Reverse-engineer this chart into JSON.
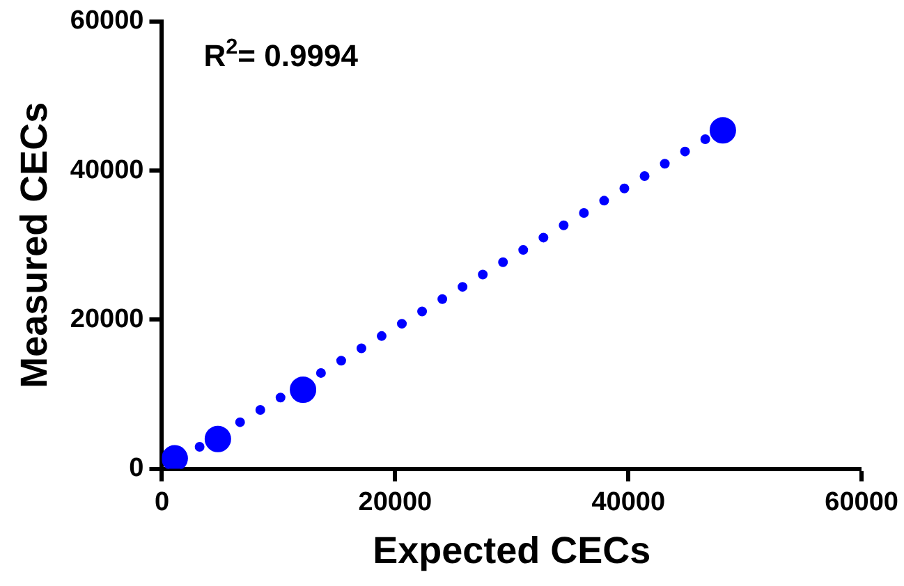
{
  "chart_data": {
    "type": "scatter",
    "xlabel": "Expected CECs",
    "ylabel": "Measured CECs",
    "annotations": [
      "R$^{2}$= 0.9994"
    ],
    "xlim": [
      0,
      60000
    ],
    "xticks": [
      0,
      20000,
      40000,
      60000
    ],
    "ylim": [
      0,
      60000
    ],
    "yticks": [
      0,
      20000,
      40000,
      60000
    ],
    "grid": false,
    "legend": false,
    "marker": "circle",
    "series": [
      {
        "color": "#0000ff",
        "x": [
          1100,
          4800,
          12100,
          48100
        ],
        "values": [
          1400,
          4000,
          10600,
          45400
        ]
      },
      {
        "type": "line",
        "line_style": "dotted",
        "marker": "none",
        "color": "#0000ff",
        "x": [
          1500,
          47000
        ],
        "values": [
          1300,
          44600
        ]
      }
    ]
  }
}
